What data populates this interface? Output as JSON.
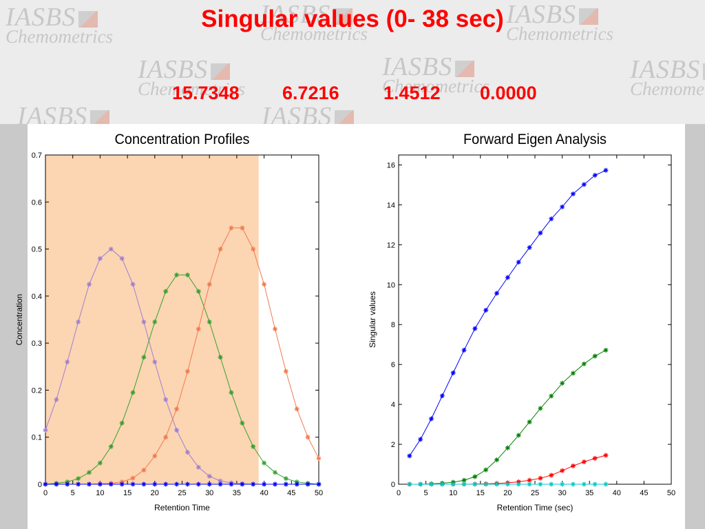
{
  "title": "Singular values  (0- 38 sec)",
  "singular_values": [
    "15.7348",
    "6.7216",
    "1.4512",
    "0.0000"
  ],
  "watermark": {
    "line1": "IASBS",
    "line2": "Chemometrics"
  },
  "colors": {
    "title": "#ff0000",
    "highlight": "#fcd5b2",
    "purple": "#9d7fd0",
    "green": "#36a032",
    "orange": "#f07a4e",
    "red": "#ff0000",
    "blue": "#0000ff",
    "cyan": "#00c8c8"
  },
  "chart_data": [
    {
      "type": "line",
      "title": "Concentration Profiles",
      "xlabel": "Retention Time",
      "ylabel": "Concentration",
      "xlim": [
        0,
        50
      ],
      "ylim": [
        0,
        0.7
      ],
      "xticks": [
        0,
        5,
        10,
        15,
        20,
        25,
        30,
        35,
        40,
        45,
        50
      ],
      "yticks": [
        0,
        0.1,
        0.2,
        0.3,
        0.4,
        0.5,
        0.6,
        0.7
      ],
      "highlight_range": [
        0,
        39
      ],
      "x": [
        0,
        2,
        4,
        6,
        8,
        10,
        12,
        14,
        16,
        18,
        20,
        22,
        24,
        26,
        28,
        30,
        32,
        34,
        36,
        38,
        40,
        42,
        44,
        46,
        48,
        50
      ],
      "series": [
        {
          "color": "#9d7fd0",
          "values": [
            0.115,
            0.18,
            0.26,
            0.345,
            0.425,
            0.48,
            0.5,
            0.48,
            0.425,
            0.345,
            0.26,
            0.18,
            0.115,
            0.068,
            0.036,
            0.017,
            0.007,
            0.003,
            0.001,
            0.0,
            0.0,
            0.0,
            0.0,
            0.0,
            0.0,
            0.0
          ]
        },
        {
          "color": "#36a032",
          "values": [
            0.0,
            0.002,
            0.005,
            0.012,
            0.025,
            0.045,
            0.08,
            0.13,
            0.195,
            0.27,
            0.345,
            0.41,
            0.445,
            0.445,
            0.41,
            0.345,
            0.27,
            0.195,
            0.13,
            0.08,
            0.045,
            0.025,
            0.012,
            0.005,
            0.002,
            0.0
          ]
        },
        {
          "color": "#f07a4e",
          "values": [
            0.0,
            0.0,
            0.0,
            0.0,
            0.0,
            0.001,
            0.002,
            0.005,
            0.013,
            0.03,
            0.06,
            0.1,
            0.16,
            0.24,
            0.33,
            0.425,
            0.5,
            0.545,
            0.545,
            0.5,
            0.425,
            0.33,
            0.24,
            0.16,
            0.1,
            0.055
          ]
        },
        {
          "color": "#0000ff",
          "values": [
            0,
            0,
            0,
            0,
            0,
            0,
            0,
            0,
            0,
            0,
            0,
            0,
            0,
            0,
            0,
            0,
            0,
            0,
            0,
            0,
            0,
            0,
            0,
            0,
            0,
            0
          ]
        }
      ]
    },
    {
      "type": "line",
      "title": "Forward Eigen Analysis",
      "xlabel": "Retention Time (sec)",
      "ylabel": "Singular values",
      "xlim": [
        0,
        50
      ],
      "ylim": [
        0,
        16.5
      ],
      "xticks": [
        0,
        5,
        10,
        15,
        20,
        25,
        30,
        35,
        40,
        45,
        50
      ],
      "yticks": [
        0,
        2,
        4,
        6,
        8,
        10,
        12,
        14,
        16
      ],
      "x": [
        2,
        4,
        6,
        8,
        10,
        12,
        14,
        16,
        18,
        20,
        22,
        24,
        26,
        28,
        30,
        32,
        34,
        36,
        38
      ],
      "series": [
        {
          "color": "#0000ff",
          "values": [
            1.42,
            2.25,
            3.28,
            4.43,
            5.58,
            6.72,
            7.8,
            8.72,
            9.57,
            10.36,
            11.13,
            11.86,
            12.59,
            13.3,
            13.9,
            14.55,
            15.02,
            15.48,
            15.73
          ]
        },
        {
          "color": "#008000",
          "values": [
            0.0,
            0.0,
            0.02,
            0.05,
            0.1,
            0.2,
            0.38,
            0.72,
            1.22,
            1.82,
            2.45,
            3.12,
            3.8,
            4.42,
            5.06,
            5.56,
            6.03,
            6.42,
            6.72
          ]
        },
        {
          "color": "#ff0000",
          "values": [
            0.0,
            0.0,
            0.0,
            0.0,
            0.0,
            0.0,
            0.01,
            0.02,
            0.04,
            0.07,
            0.12,
            0.2,
            0.3,
            0.45,
            0.68,
            0.92,
            1.12,
            1.3,
            1.45
          ]
        },
        {
          "color": "#00c8c8",
          "values": [
            0,
            0,
            0,
            0,
            0,
            0,
            0,
            0,
            0,
            0,
            0,
            0,
            0,
            0,
            0,
            0,
            0,
            0,
            0
          ]
        }
      ]
    }
  ]
}
